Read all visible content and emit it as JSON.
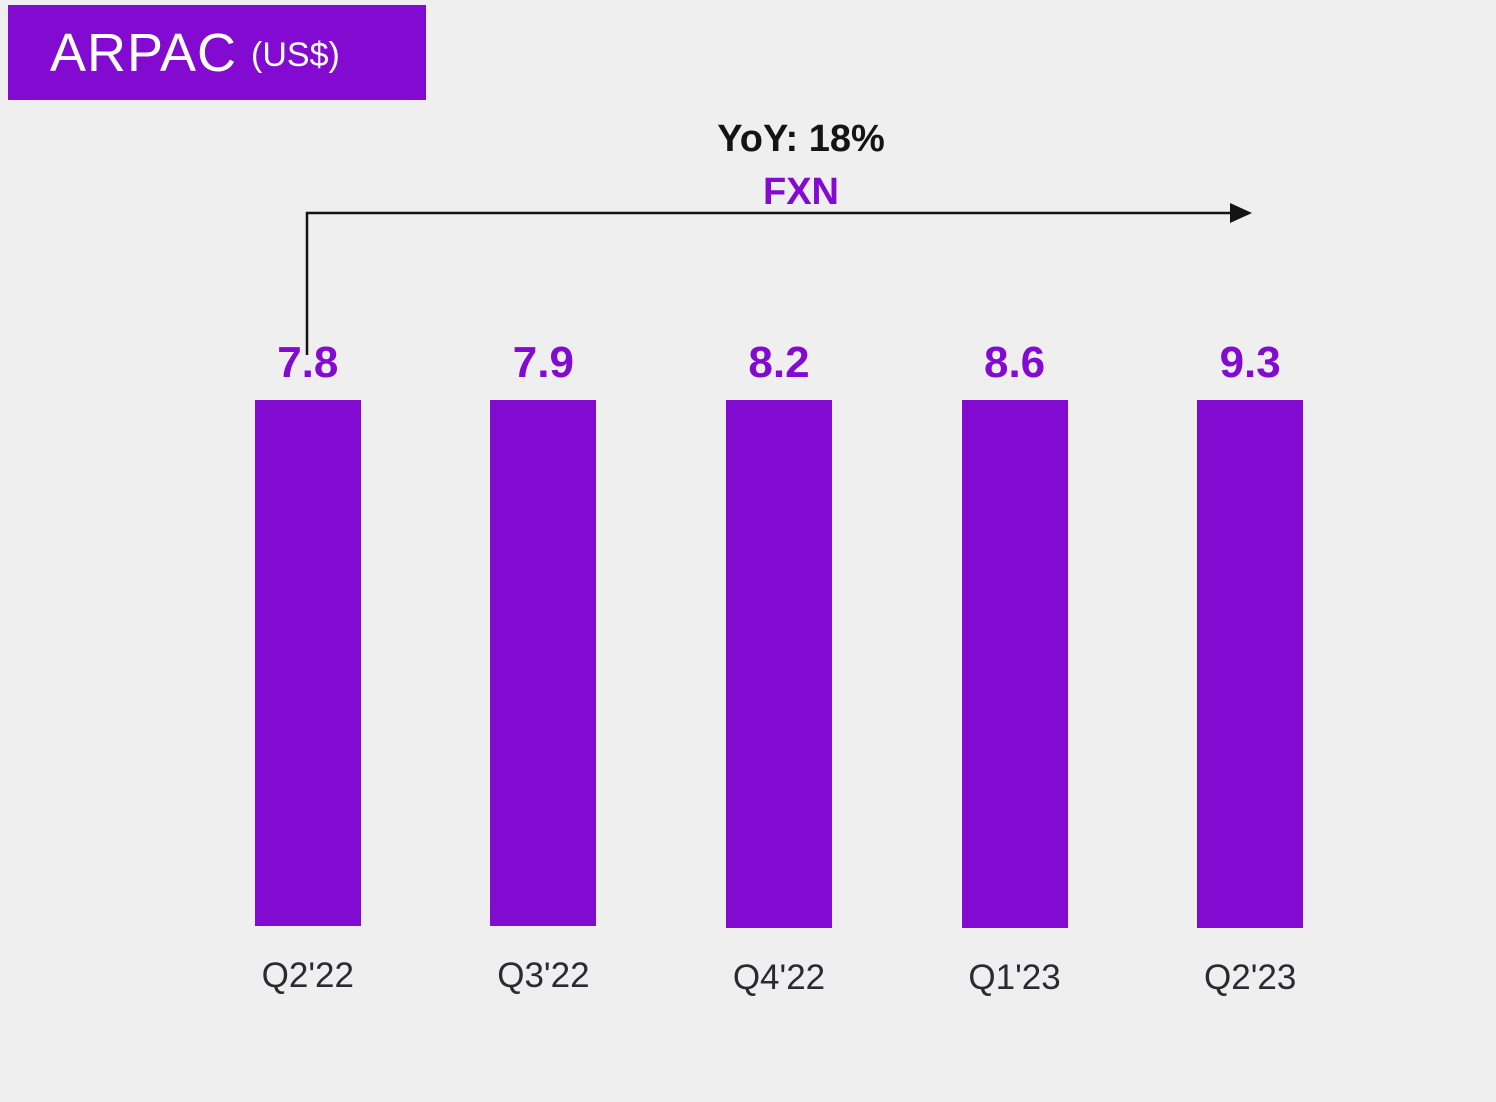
{
  "title": {
    "text": "ARPAC",
    "unit": "(US$)"
  },
  "annotation": {
    "yoy_label": "YoY: 18%",
    "fx_label": "FXN"
  },
  "colors": {
    "accent": "#820AD1",
    "background": "#F0EFEF",
    "text_dark": "#141414"
  },
  "chart_data": {
    "type": "bar",
    "title": "ARPAC (US$)",
    "categories": [
      "Q2'22",
      "Q3'22",
      "Q4'22",
      "Q1'23",
      "Q2'23"
    ],
    "values": [
      7.8,
      7.9,
      8.2,
      8.6,
      9.3
    ],
    "xlabel": "",
    "ylabel": "",
    "ylim": [
      0,
      10
    ],
    "grid": false,
    "legend": false,
    "value_labels": [
      "7.8",
      "7.9",
      "8.2",
      "8.6",
      "9.3"
    ],
    "annotations": [
      "YoY: 18%",
      "FXN"
    ],
    "annotation_span": [
      "Q2'22",
      "Q2'23"
    ]
  }
}
